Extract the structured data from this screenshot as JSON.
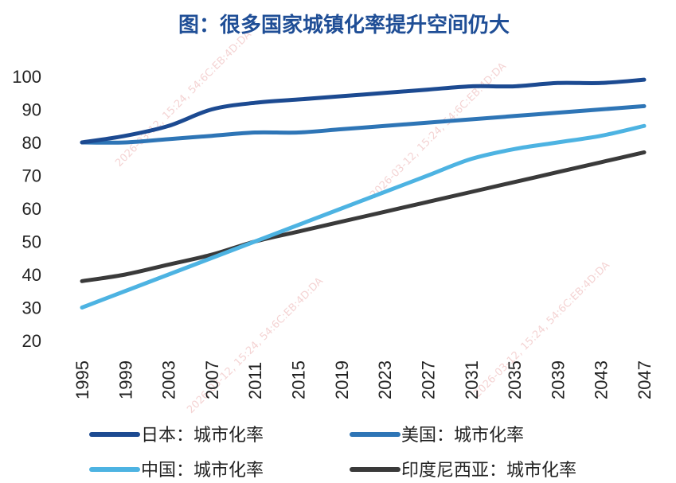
{
  "chart_data": {
    "type": "line",
    "title": "图：很多国家城镇化率提升空间仍大",
    "xlabel": "",
    "ylabel": "",
    "ylim": [
      20,
      100
    ],
    "yticks": [
      20,
      30,
      40,
      50,
      60,
      70,
      80,
      90,
      100
    ],
    "x": [
      1995,
      1999,
      2003,
      2007,
      2011,
      2015,
      2019,
      2023,
      2027,
      2031,
      2035,
      2039,
      2043,
      2047
    ],
    "xtick_labels": [
      "1995",
      "1999",
      "2003",
      "2007",
      "2011",
      "2015",
      "2019",
      "2023",
      "2027",
      "2031",
      "2035",
      "2039",
      "2043",
      "2047"
    ],
    "grid": false,
    "legend_position": "bottom",
    "series": [
      {
        "name": "日本：城市化率",
        "color": "#1c4a91",
        "values": [
          80,
          82,
          85,
          90,
          92,
          93,
          94,
          95,
          96,
          97,
          97,
          98,
          98,
          99
        ]
      },
      {
        "name": "美国：城市化率",
        "color": "#2e75b6",
        "values": [
          80,
          80,
          81,
          82,
          83,
          83,
          84,
          85,
          86,
          87,
          88,
          89,
          90,
          91
        ]
      },
      {
        "name": "中国：城市化率",
        "color": "#4db3e2",
        "values": [
          30,
          35,
          40,
          45,
          50,
          55,
          60,
          65,
          70,
          75,
          78,
          80,
          82,
          85
        ]
      },
      {
        "name": "印度尼西亚：城市化率",
        "color": "#3a3a3a",
        "values": [
          38,
          40,
          43,
          46,
          50,
          53,
          56,
          59,
          62,
          65,
          68,
          71,
          74,
          77
        ]
      }
    ]
  }
}
